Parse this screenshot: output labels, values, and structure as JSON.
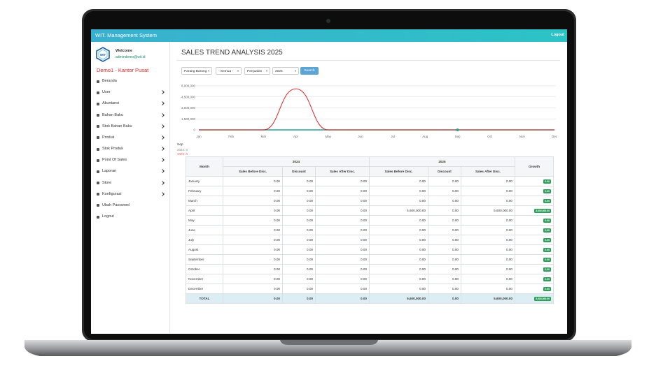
{
  "header": {
    "title": "WIT. Management System",
    "logout": "Logout"
  },
  "sidebar": {
    "logo": "WIT",
    "welcome": "Welcome",
    "email": "admindemo@wit.id",
    "branch": "Demo1 - Kantor Pusat",
    "menu": [
      {
        "label": "Beranda",
        "sub": false
      },
      {
        "label": "User",
        "sub": true
      },
      {
        "label": "Akuntansi",
        "sub": true
      },
      {
        "label": "Bahan Baku",
        "sub": true
      },
      {
        "label": "Stok Bahan Baku",
        "sub": true
      },
      {
        "label": "Produk",
        "sub": true
      },
      {
        "label": "Stok Produk",
        "sub": true
      },
      {
        "label": "Point Of Sales",
        "sub": true
      },
      {
        "label": "Laporan",
        "sub": true
      },
      {
        "label": "Store",
        "sub": true
      },
      {
        "label": "Konfigurasi",
        "sub": true
      },
      {
        "label": "Ubah Password",
        "sub": false
      },
      {
        "label": "Logout",
        "sub": false
      }
    ]
  },
  "page_title": "SALES TREND ANALYSIS 2025",
  "filters": [
    "Parang Barong",
    "- Semua -",
    "Penjualan",
    "2025"
  ],
  "search": "Search",
  "chart_data": {
    "type": "line",
    "categories": [
      "Jan",
      "Feb",
      "Mar",
      "Apr",
      "May",
      "Jun",
      "Jul",
      "Aug",
      "Sep",
      "Oct",
      "Nov",
      "Dec"
    ],
    "series": [
      {
        "color": "#2a9d8f",
        "values": [
          0,
          0,
          0,
          0,
          0,
          0,
          0,
          0,
          0,
          0,
          0,
          0
        ]
      },
      {
        "color": "#e02424",
        "values": [
          0,
          0,
          0,
          5600000,
          0,
          0,
          0,
          0,
          0,
          0,
          0,
          0
        ]
      }
    ],
    "ylim": [
      0,
      6000000
    ],
    "yticks": [
      0,
      {
        "value": 1500000,
        "label": "1,500,000"
      },
      {
        "value": 3000000,
        "label": "3,000,000"
      },
      {
        "value": 4500000,
        "label": "4,500,000"
      },
      {
        "value": 6000000,
        "label": "6,000,000"
      }
    ],
    "grid": true,
    "tooltip": {
      "category": "Sep",
      "lines": [
        "2024: 0",
        "2025: 0"
      ]
    }
  },
  "table": {
    "month_header": "Month",
    "year_headers": [
      "2024",
      "2025"
    ],
    "sub_headers": [
      "Sales Before Disc.",
      "Discount",
      "Sales After Disc."
    ],
    "growth_header": "Growth",
    "rows": [
      [
        "January",
        "0.00",
        "0.00",
        "0.00",
        "0.00",
        "0.00",
        "0.00",
        "0.00"
      ],
      [
        "February",
        "0.00",
        "0.00",
        "0.00",
        "0.00",
        "0.00",
        "0.00",
        "0.00"
      ],
      [
        "March",
        "0.00",
        "0.00",
        "0.00",
        "0.00",
        "0.00",
        "0.00",
        "0.00"
      ],
      [
        "April",
        "0.00",
        "0.00",
        "0.00",
        "5,600,000.00",
        "0.00",
        "5,600,000.00",
        "5,600,000.00"
      ],
      [
        "May",
        "0.00",
        "0.00",
        "0.00",
        "0.00",
        "0.00",
        "0.00",
        "0.00"
      ],
      [
        "June",
        "0.00",
        "0.00",
        "0.00",
        "0.00",
        "0.00",
        "0.00",
        "0.00"
      ],
      [
        "July",
        "0.00",
        "0.00",
        "0.00",
        "0.00",
        "0.00",
        "0.00",
        "0.00"
      ],
      [
        "August",
        "0.00",
        "0.00",
        "0.00",
        "0.00",
        "0.00",
        "0.00",
        "0.00"
      ],
      [
        "September",
        "0.00",
        "0.00",
        "0.00",
        "0.00",
        "0.00",
        "0.00",
        "0.00"
      ],
      [
        "October",
        "0.00",
        "0.00",
        "0.00",
        "0.00",
        "0.00",
        "0.00",
        "0.00"
      ],
      [
        "November",
        "0.00",
        "0.00",
        "0.00",
        "0.00",
        "0.00",
        "0.00",
        "0.00"
      ],
      [
        "December",
        "0.00",
        "0.00",
        "0.00",
        "0.00",
        "0.00",
        "0.00",
        "0.00"
      ]
    ],
    "total": [
      "TOTAL",
      "0.00",
      "0.00",
      "0.00",
      "5,600,000.00",
      "0.00",
      "5,600,000.00",
      "5,600,000.00"
    ]
  }
}
